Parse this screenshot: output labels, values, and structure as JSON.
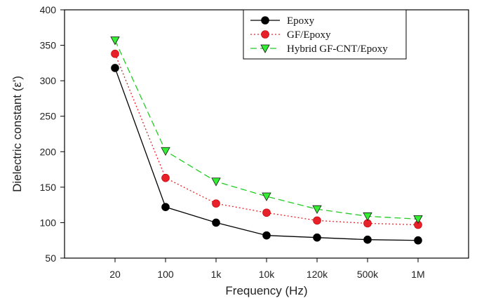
{
  "chart_data": {
    "type": "line",
    "title": "",
    "xlabel": "Frequency (Hz)",
    "ylabel": "Dielectric constant (ε')",
    "categories": [
      "20",
      "100",
      "1k",
      "10k",
      "120k",
      "500k",
      "1M"
    ],
    "ylim": [
      50,
      400
    ],
    "yticks": [
      50,
      100,
      150,
      200,
      250,
      300,
      350,
      400
    ],
    "grid": false,
    "legend_position": "top-right",
    "series": [
      {
        "name": "Epoxy",
        "values": [
          318,
          122,
          100,
          82,
          79,
          76,
          75
        ],
        "line_color": "#000000",
        "marker_fill": "#000000",
        "line_style": "solid",
        "marker": "circle"
      },
      {
        "name": "GF/Epoxy",
        "values": [
          338,
          163,
          127,
          114,
          103,
          99,
          97
        ],
        "line_color": "#e8202a",
        "marker_fill": "#e8202a",
        "line_style": "dotted",
        "marker": "circle"
      },
      {
        "name": "Hybrid GF-CNT/Epoxy",
        "values": [
          357,
          201,
          158,
          137,
          119,
          109,
          105
        ],
        "line_color": "#22cc22",
        "marker_fill": "#33ee33",
        "line_style": "dashed",
        "marker": "triangle-down"
      }
    ]
  }
}
